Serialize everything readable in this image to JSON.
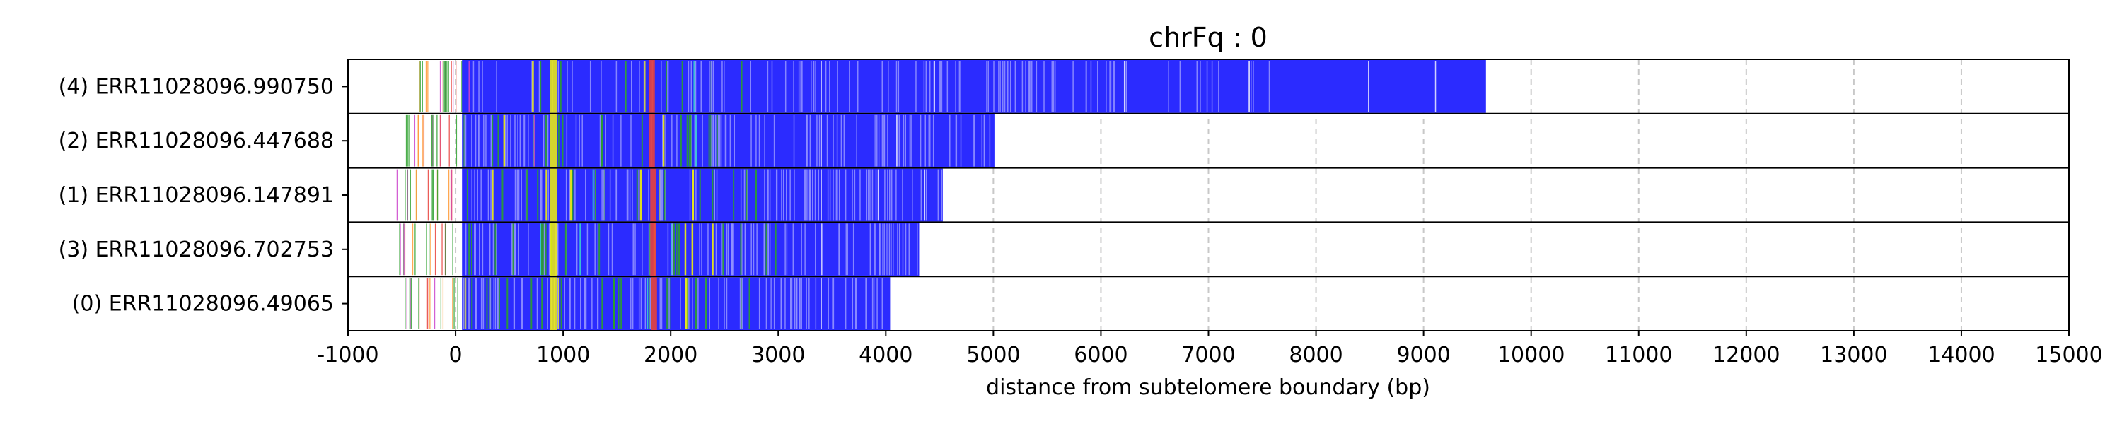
{
  "chart_data": {
    "type": "bar",
    "title": "chrFq : 0",
    "xlabel": "distance from subtelomere boundary (bp)",
    "ylabel": "",
    "xlim": [
      -1000,
      15000
    ],
    "x_ticks": [
      -1000,
      0,
      1000,
      2000,
      3000,
      4000,
      5000,
      6000,
      7000,
      8000,
      9000,
      10000,
      11000,
      12000,
      13000,
      14000,
      15000
    ],
    "grid": "vertical dashed",
    "colors": {
      "main": "#2b2bff",
      "light": "#8f8fff",
      "green": "#2ca02c",
      "yellow": "#f2f20a",
      "red": "#e8413c",
      "magenta": "#cc44cc",
      "cyan": "#3ad0d0",
      "orange": "#ff9933"
    },
    "reads": [
      {
        "label": "(4) ERR11028096.990750",
        "start": -420,
        "end": 9580,
        "red_at": 1800
      },
      {
        "label": "(2) ERR11028096.447688",
        "start": -480,
        "end": 5010,
        "red_at": 1800
      },
      {
        "label": "(1) ERR11028096.147891",
        "start": -560,
        "end": 4530,
        "red_at": 1810
      },
      {
        "label": "(3) ERR11028096.702753",
        "start": -520,
        "end": 4310,
        "red_at": 1810
      },
      {
        "label": "(0) ERR11028096.49065",
        "start": -470,
        "end": 4040,
        "red_at": 1820
      }
    ]
  }
}
